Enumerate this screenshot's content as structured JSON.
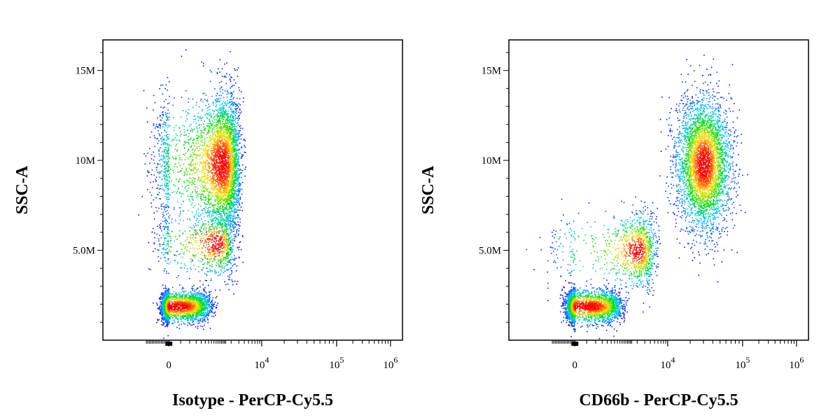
{
  "chart_data": [
    {
      "type": "scatter",
      "style": "density-dot-plot",
      "xlabel": "Isotype - PerCP-Cy5.5",
      "ylabel": "SSC-A",
      "x_scale": "biexponential",
      "y_ticks": [
        {
          "value": 5000000,
          "label": "5.0M"
        },
        {
          "value": 10000000,
          "label": "10M"
        },
        {
          "value": 15000000,
          "label": "15M"
        }
      ],
      "x_ticks": [
        {
          "value": 0,
          "base": "0",
          "exp": ""
        },
        {
          "value": 10000,
          "base": "10",
          "exp": "4"
        },
        {
          "value": 100000,
          "base": "10",
          "exp": "5"
        },
        {
          "value": 1000000,
          "base": "10",
          "exp": "6"
        }
      ],
      "ylim": [
        0,
        16700000
      ],
      "populations": [
        {
          "x_center": 60,
          "y_center": 1900000,
          "x_spread": 280,
          "y_spread": 420000,
          "count": 2600
        },
        {
          "x_center": 1200,
          "y_center": 9800000,
          "x_spread": 900,
          "y_spread": 1900000,
          "count": 4200
        },
        {
          "x_center": 900,
          "y_center": 5400000,
          "x_spread": 700,
          "y_spread": 900000,
          "count": 900
        }
      ],
      "density_colors": [
        "#0000ff",
        "#00c8ff",
        "#00e000",
        "#ffe000",
        "#ff0000"
      ]
    },
    {
      "type": "scatter",
      "style": "density-dot-plot",
      "xlabel": "CD66b - PerCP-Cy5.5",
      "ylabel": "SSC-A",
      "x_scale": "biexponential",
      "y_ticks": [
        {
          "value": 5000000,
          "label": "5.0M"
        },
        {
          "value": 10000000,
          "label": "10M"
        },
        {
          "value": 15000000,
          "label": "15M"
        }
      ],
      "x_ticks": [
        {
          "value": 0,
          "base": "0",
          "exp": ""
        },
        {
          "value": 10000,
          "base": "10",
          "exp": "4"
        },
        {
          "value": 100000,
          "base": "10",
          "exp": "5"
        },
        {
          "value": 1000000,
          "base": "10",
          "exp": "6"
        }
      ],
      "ylim": [
        0,
        16700000
      ],
      "populations": [
        {
          "x_center": 100,
          "y_center": 1900000,
          "x_spread": 350,
          "y_spread": 450000,
          "count": 2600
        },
        {
          "x_center": 2000,
          "y_center": 5000000,
          "x_spread": 1500,
          "y_spread": 1000000,
          "count": 1100
        },
        {
          "x_center": 30000,
          "y_center": 9800000,
          "x_spread": 12000,
          "y_spread": 1800000,
          "count": 4000
        }
      ],
      "density_colors": [
        "#0000ff",
        "#00c8ff",
        "#00e000",
        "#ffe000",
        "#ff0000"
      ]
    }
  ]
}
